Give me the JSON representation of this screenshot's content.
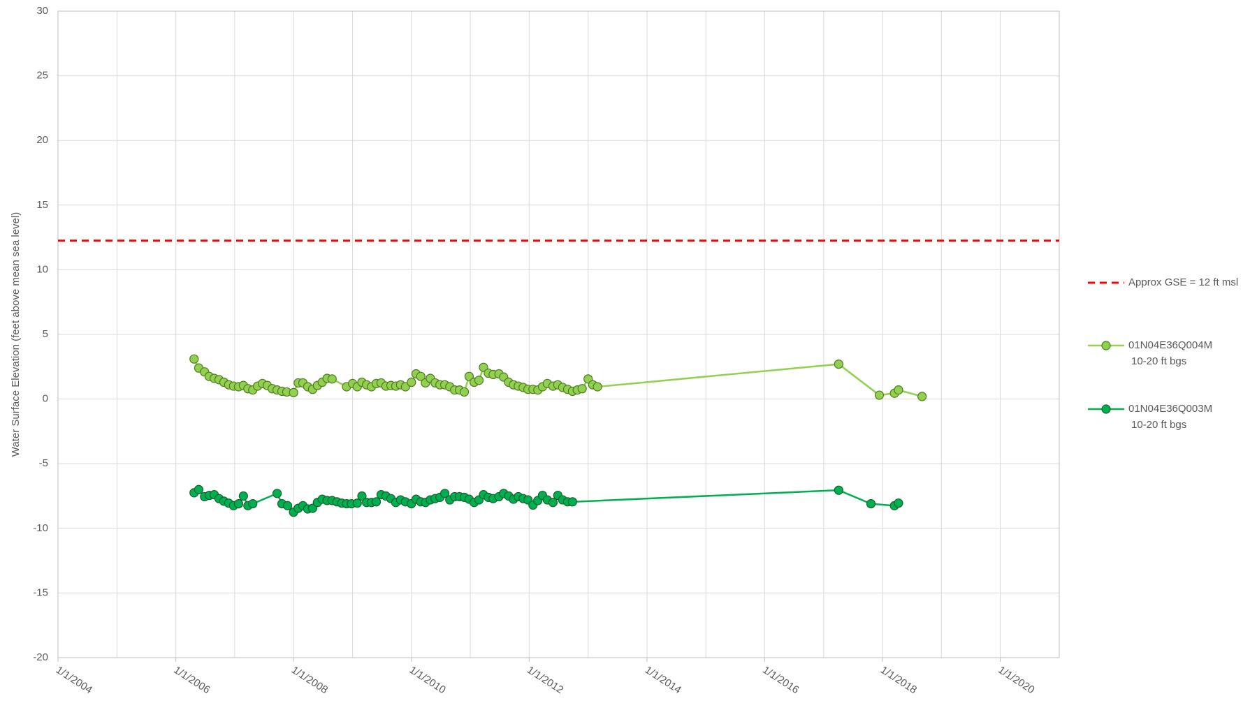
{
  "chart_data": {
    "type": "line",
    "y_label": "Water Surface Elevation (feet above mean sea level)",
    "xlim": [
      "2004-01-01",
      "2021-01-01"
    ],
    "ylim": [
      -20,
      30
    ],
    "yticks": [
      -20,
      -15,
      -10,
      -5,
      0,
      5,
      10,
      15,
      20,
      25,
      30
    ],
    "xticks": [
      {
        "value": "2004-01-01",
        "label": "1/1/2004"
      },
      {
        "value": "2006-01-01",
        "label": "1/1/2006"
      },
      {
        "value": "2008-01-01",
        "label": "1/1/2008"
      },
      {
        "value": "2010-01-01",
        "label": "1/1/2010"
      },
      {
        "value": "2012-01-01",
        "label": "1/1/2012"
      },
      {
        "value": "2014-01-01",
        "label": "1/1/2014"
      },
      {
        "value": "2016-01-01",
        "label": "1/1/2016"
      },
      {
        "value": "2018-01-01",
        "label": "1/1/2018"
      },
      {
        "value": "2020-01-01",
        "label": "1/1/2020"
      }
    ],
    "x_minor_grid": [
      "2005-01-01",
      "2007-01-01",
      "2009-01-01",
      "2011-01-01",
      "2013-01-01",
      "2015-01-01",
      "2017-01-01",
      "2019-01-01"
    ],
    "grid": true,
    "legend": "right",
    "series": [
      {
        "name": "Approx GSE = 12 ft msl",
        "color": "#ff0000",
        "dashed": true,
        "markers": false,
        "x": [
          "2004-01-01",
          "2021-01-01"
        ],
        "values": [
          12.25,
          12.25
        ]
      },
      {
        "name": "01N04E36Q004M",
        "depth": "10-20 ft bgs",
        "color": "#92d050",
        "marker_stroke": "#4f7a22",
        "markers": true,
        "x": [
          "2006-04-24",
          "2006-05-23",
          "2006-06-28",
          "2006-07-27",
          "2006-08-27",
          "2006-09-26",
          "2006-10-26",
          "2006-11-25",
          "2006-12-25",
          "2007-01-25",
          "2007-02-24",
          "2007-03-24",
          "2007-04-23",
          "2007-05-23",
          "2007-06-22",
          "2007-07-22",
          "2007-08-22",
          "2007-09-21",
          "2007-10-21",
          "2007-11-20",
          "2008-01-01",
          "2008-01-30",
          "2008-02-28",
          "2008-03-29",
          "2008-04-28",
          "2008-05-28",
          "2008-06-27",
          "2008-07-27",
          "2008-08-27",
          "2008-11-25",
          "2009-01-01",
          "2009-01-30",
          "2009-02-28",
          "2009-03-29",
          "2009-04-28",
          "2009-05-28",
          "2009-06-27",
          "2009-07-27",
          "2009-08-27",
          "2009-09-26",
          "2009-10-26",
          "2009-11-25",
          "2010-01-01",
          "2010-01-30",
          "2010-02-28",
          "2010-03-29",
          "2010-04-28",
          "2010-05-28",
          "2010-06-27",
          "2010-07-27",
          "2010-08-27",
          "2010-09-26",
          "2010-10-26",
          "2010-11-25",
          "2010-12-25",
          "2011-01-25",
          "2011-02-24",
          "2011-03-24",
          "2011-04-23",
          "2011-05-23",
          "2011-06-28",
          "2011-07-27",
          "2011-08-27",
          "2011-09-26",
          "2011-10-26",
          "2011-11-25",
          "2011-12-25",
          "2012-01-25",
          "2012-02-24",
          "2012-03-24",
          "2012-04-23",
          "2012-05-28",
          "2012-06-27",
          "2012-07-27",
          "2012-08-27",
          "2012-09-26",
          "2012-10-26",
          "2012-11-25",
          "2013-01-01",
          "2013-01-30",
          "2013-02-28",
          "2017-04-04",
          "2017-12-12",
          "2018-03-16",
          "2018-04-10",
          "2018-09-03"
        ],
        "values": [
          3.1,
          2.4,
          2.1,
          1.75,
          1.6,
          1.5,
          1.3,
          1.1,
          1.0,
          0.95,
          1.05,
          0.8,
          0.7,
          1.0,
          1.2,
          1.05,
          0.8,
          0.7,
          0.6,
          0.55,
          0.5,
          1.25,
          1.25,
          0.95,
          0.75,
          1.05,
          1.3,
          1.6,
          1.55,
          0.95,
          1.2,
          0.95,
          1.3,
          1.1,
          0.95,
          1.2,
          1.25,
          1.0,
          1.05,
          1.0,
          1.1,
          0.95,
          1.3,
          1.95,
          1.75,
          1.25,
          1.6,
          1.25,
          1.1,
          1.1,
          0.95,
          0.7,
          0.7,
          0.55,
          1.75,
          1.3,
          1.45,
          2.45,
          2.0,
          1.9,
          1.95,
          1.7,
          1.3,
          1.1,
          1.0,
          0.9,
          0.75,
          0.75,
          0.7,
          0.95,
          1.2,
          1.0,
          1.1,
          0.9,
          0.75,
          0.6,
          0.7,
          0.8,
          1.55,
          1.1,
          0.95,
          2.7,
          0.3,
          0.45,
          0.7,
          0.2
        ]
      },
      {
        "name": "01N04E36Q003M",
        "depth": "10-20 ft bgs",
        "color": "#00b050",
        "marker_stroke": "#17602d",
        "markers": true,
        "x": [
          "2006-04-24",
          "2006-05-23",
          "2006-06-28",
          "2006-07-27",
          "2006-08-27",
          "2006-09-26",
          "2006-10-26",
          "2006-11-25",
          "2006-12-25",
          "2007-01-25",
          "2007-02-24",
          "2007-03-24",
          "2007-04-23",
          "2007-09-21",
          "2007-10-21",
          "2007-11-25",
          "2008-01-01",
          "2008-01-30",
          "2008-02-28",
          "2008-03-29",
          "2008-04-28",
          "2008-05-28",
          "2008-06-27",
          "2008-07-27",
          "2008-08-27",
          "2008-09-26",
          "2008-10-26",
          "2008-11-25",
          "2008-12-25",
          "2009-01-30",
          "2009-02-28",
          "2009-03-29",
          "2009-04-28",
          "2009-05-28",
          "2009-06-27",
          "2009-07-27",
          "2009-08-27",
          "2009-09-26",
          "2009-10-26",
          "2009-11-25",
          "2010-01-01",
          "2010-01-30",
          "2010-02-28",
          "2010-03-29",
          "2010-04-28",
          "2010-05-28",
          "2010-06-27",
          "2010-07-27",
          "2010-08-27",
          "2010-09-26",
          "2010-10-26",
          "2010-11-25",
          "2010-12-25",
          "2011-01-25",
          "2011-02-24",
          "2011-03-24",
          "2011-04-23",
          "2011-05-23",
          "2011-06-28",
          "2011-07-27",
          "2011-08-27",
          "2011-09-26",
          "2011-10-26",
          "2011-11-25",
          "2011-12-25",
          "2012-01-25",
          "2012-02-24",
          "2012-03-24",
          "2012-04-23",
          "2012-05-28",
          "2012-06-27",
          "2012-07-27",
          "2012-08-27",
          "2012-09-26",
          "2017-04-04",
          "2017-10-21",
          "2018-03-16",
          "2018-04-10"
        ],
        "values": [
          -7.25,
          -7.0,
          -7.55,
          -7.45,
          -7.4,
          -7.7,
          -7.9,
          -8.05,
          -8.25,
          -8.1,
          -7.5,
          -8.25,
          -8.1,
          -7.3,
          -8.1,
          -8.25,
          -8.75,
          -8.45,
          -8.25,
          -8.5,
          -8.45,
          -8.0,
          -7.75,
          -7.85,
          -7.85,
          -7.95,
          -8.05,
          -8.1,
          -8.1,
          -8.05,
          -7.5,
          -8.0,
          -8.0,
          -7.95,
          -7.4,
          -7.5,
          -7.7,
          -8.0,
          -7.8,
          -7.95,
          -8.1,
          -7.75,
          -7.95,
          -8.0,
          -7.8,
          -7.7,
          -7.6,
          -7.3,
          -7.8,
          -7.55,
          -7.55,
          -7.6,
          -7.75,
          -8.0,
          -7.8,
          -7.4,
          -7.6,
          -7.7,
          -7.55,
          -7.3,
          -7.5,
          -7.75,
          -7.55,
          -7.7,
          -7.8,
          -8.2,
          -7.85,
          -7.45,
          -7.8,
          -8.0,
          -7.45,
          -7.8,
          -7.95,
          -7.95,
          -7.05,
          -8.1,
          -8.25,
          -8.05
        ]
      }
    ]
  }
}
